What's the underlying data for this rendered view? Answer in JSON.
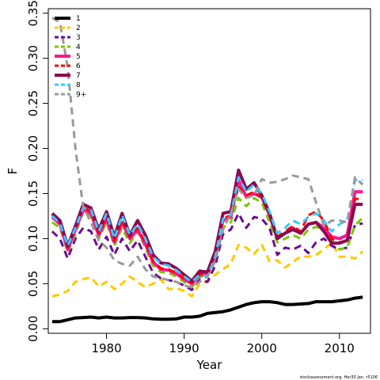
{
  "chart_data": {
    "type": "line",
    "title": "",
    "xlabel": "Year",
    "ylabel": "F",
    "xlim": [
      1972.5,
      2014
    ],
    "ylim": [
      -0.005,
      0.355
    ],
    "x_ticks": [
      1980,
      1990,
      2000,
      2010
    ],
    "y_ticks": [
      0.0,
      0.05,
      0.1,
      0.15,
      0.2,
      0.25,
      0.3,
      0.35
    ],
    "y_tick_labels": [
      "0.00",
      "0.05",
      "0.10",
      "0.15",
      "0.20",
      "0.25",
      "0.30",
      "0.35"
    ],
    "legend_position": "top-left",
    "footer": "stockassessment.org, Her30 Jan. r5106",
    "x": [
      1973,
      1974,
      1975,
      1976,
      1977,
      1978,
      1979,
      1980,
      1981,
      1982,
      1983,
      1984,
      1985,
      1986,
      1987,
      1988,
      1989,
      1990,
      1991,
      1992,
      1993,
      1994,
      1995,
      1996,
      1997,
      1998,
      1999,
      2000,
      2001,
      2002,
      2003,
      2004,
      2005,
      2006,
      2007,
      2008,
      2009,
      2010,
      2011,
      2012,
      2013
    ],
    "series": [
      {
        "name": "1",
        "color": "#000000",
        "dash": "solid",
        "width": 4,
        "values": [
          0.008,
          0.008,
          0.01,
          0.012,
          0.0125,
          0.013,
          0.012,
          0.013,
          0.012,
          0.012,
          0.0125,
          0.0125,
          0.012,
          0.011,
          0.0105,
          0.0105,
          0.011,
          0.013,
          0.013,
          0.014,
          0.017,
          0.018,
          0.019,
          0.021,
          0.024,
          0.027,
          0.029,
          0.03,
          0.03,
          0.029,
          0.027,
          0.027,
          0.0275,
          0.028,
          0.03,
          0.03,
          0.03,
          0.031,
          0.032,
          0.034,
          0.035
        ]
      },
      {
        "name": "2",
        "color": "#ffc800",
        "dash": "dash",
        "width": 3,
        "values": [
          0.036,
          0.038,
          0.042,
          0.052,
          0.055,
          0.057,
          0.047,
          0.052,
          0.044,
          0.05,
          0.058,
          0.052,
          0.046,
          0.05,
          0.055,
          0.044,
          0.045,
          0.042,
          0.036,
          0.05,
          0.052,
          0.06,
          0.066,
          0.072,
          0.093,
          0.09,
          0.083,
          0.093,
          0.075,
          0.076,
          0.068,
          0.074,
          0.08,
          0.08,
          0.082,
          0.088,
          0.096,
          0.08,
          0.08,
          0.078,
          0.086
        ]
      },
      {
        "name": "3",
        "color": "#6a0d91",
        "dash": "dash",
        "width": 3,
        "values": [
          0.108,
          0.1,
          0.078,
          0.1,
          0.112,
          0.108,
          0.088,
          0.102,
          0.082,
          0.1,
          0.086,
          0.098,
          0.08,
          0.062,
          0.056,
          0.054,
          0.052,
          0.048,
          0.043,
          0.055,
          0.052,
          0.07,
          0.105,
          0.11,
          0.128,
          0.112,
          0.124,
          0.122,
          0.112,
          0.082,
          0.09,
          0.088,
          0.092,
          0.084,
          0.096,
          0.1,
          0.092,
          0.088,
          0.09,
          0.115,
          0.117
        ]
      },
      {
        "name": "4",
        "color": "#7ac70a",
        "dash": "dash",
        "width": 3,
        "values": [
          0.118,
          0.112,
          0.085,
          0.105,
          0.13,
          0.125,
          0.1,
          0.118,
          0.092,
          0.112,
          0.095,
          0.108,
          0.09,
          0.07,
          0.063,
          0.062,
          0.058,
          0.052,
          0.046,
          0.058,
          0.058,
          0.078,
          0.112,
          0.118,
          0.145,
          0.136,
          0.145,
          0.14,
          0.118,
          0.096,
          0.1,
          0.104,
          0.1,
          0.11,
          0.113,
          0.11,
          0.098,
          0.088,
          0.09,
          0.115,
          0.123
        ]
      },
      {
        "name": "5",
        "color": "#ff1493",
        "dash": "solid",
        "width": 4,
        "values": [
          0.124,
          0.116,
          0.088,
          0.11,
          0.132,
          0.128,
          0.104,
          0.122,
          0.096,
          0.118,
          0.1,
          0.11,
          0.094,
          0.074,
          0.066,
          0.065,
          0.061,
          0.055,
          0.05,
          0.06,
          0.06,
          0.082,
          0.12,
          0.124,
          0.165,
          0.146,
          0.15,
          0.146,
          0.126,
          0.1,
          0.106,
          0.112,
          0.106,
          0.116,
          0.118,
          0.112,
          0.102,
          0.1,
          0.104,
          0.152,
          0.152
        ]
      },
      {
        "name": "6",
        "color": "#ff0000",
        "dash": "dash",
        "width": 3,
        "values": [
          0.126,
          0.118,
          0.09,
          0.112,
          0.135,
          0.13,
          0.106,
          0.124,
          0.098,
          0.12,
          0.102,
          0.112,
          0.096,
          0.075,
          0.067,
          0.066,
          0.062,
          0.056,
          0.051,
          0.061,
          0.061,
          0.084,
          0.122,
          0.126,
          0.158,
          0.148,
          0.152,
          0.145,
          0.126,
          0.102,
          0.108,
          0.114,
          0.108,
          0.126,
          0.13,
          0.12,
          0.1,
          0.096,
          0.098,
          0.144,
          0.144
        ]
      },
      {
        "name": "7",
        "color": "#8b0a50",
        "dash": "solid",
        "width": 4,
        "values": [
          0.128,
          0.12,
          0.092,
          0.114,
          0.138,
          0.134,
          0.11,
          0.13,
          0.102,
          0.128,
          0.104,
          0.12,
          0.104,
          0.082,
          0.073,
          0.072,
          0.067,
          0.06,
          0.053,
          0.064,
          0.063,
          0.086,
          0.128,
          0.13,
          0.176,
          0.155,
          0.162,
          0.148,
          0.128,
          0.1,
          0.106,
          0.11,
          0.106,
          0.116,
          0.118,
          0.108,
          0.095,
          0.095,
          0.098,
          0.138,
          0.138
        ]
      },
      {
        "name": "8",
        "color": "#33ccff",
        "dash": "dash",
        "width": 3,
        "values": [
          0.125,
          0.117,
          0.092,
          0.112,
          0.134,
          0.132,
          0.108,
          0.128,
          0.1,
          0.126,
          0.104,
          0.116,
          0.1,
          0.08,
          0.072,
          0.07,
          0.065,
          0.058,
          0.052,
          0.06,
          0.058,
          0.08,
          0.122,
          0.126,
          0.168,
          0.152,
          0.16,
          0.15,
          0.13,
          0.106,
          0.112,
          0.12,
          0.116,
          0.124,
          0.128,
          0.12,
          0.108,
          0.116,
          0.12,
          0.165,
          0.165
        ]
      },
      {
        "name": "9+",
        "color": "#999999",
        "dash": "dash",
        "width": 3,
        "values": [
          0.345,
          0.34,
          0.29,
          0.2,
          0.135,
          0.118,
          0.098,
          0.09,
          0.076,
          0.072,
          0.07,
          0.08,
          0.066,
          0.058,
          0.056,
          0.054,
          0.052,
          0.048,
          0.046,
          0.052,
          0.058,
          0.075,
          0.11,
          0.128,
          0.155,
          0.145,
          0.148,
          0.166,
          0.162,
          0.163,
          0.166,
          0.17,
          0.168,
          0.166,
          0.14,
          0.114,
          0.12,
          0.12,
          0.118,
          0.168,
          0.16
        ]
      }
    ]
  }
}
